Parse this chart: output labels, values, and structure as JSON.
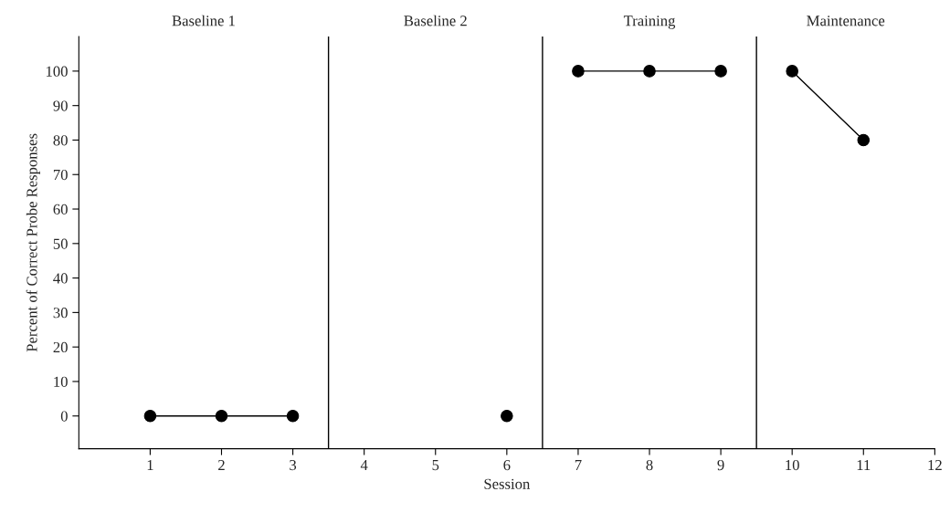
{
  "chart_data": {
    "type": "line",
    "xlabel": "Session",
    "ylabel": "Percent of Correct Probe Responses",
    "xlim": [
      0,
      12
    ],
    "xticks": [
      1,
      2,
      3,
      4,
      5,
      6,
      7,
      8,
      9,
      10,
      11,
      12
    ],
    "ylim": [
      -9.5,
      110
    ],
    "yticks": [
      0,
      10,
      20,
      30,
      40,
      50,
      60,
      70,
      80,
      90,
      100
    ],
    "series": [
      {
        "color": "#000000",
        "x": [
          1,
          2,
          3
        ],
        "values": [
          0,
          0,
          0
        ]
      },
      {
        "color": "#000000",
        "x": [
          6
        ],
        "values": [
          0
        ]
      },
      {
        "color": "#000000",
        "x": [
          7,
          8,
          9
        ],
        "values": [
          100,
          100,
          100
        ]
      },
      {
        "color": "#000000",
        "x": [
          10,
          11
        ],
        "values": [
          100,
          80
        ]
      }
    ],
    "ref_lines": [
      {
        "axis": "x",
        "value": 3.5,
        "color": "#000000"
      },
      {
        "axis": "x",
        "value": 6.5,
        "color": "#000000"
      },
      {
        "axis": "x",
        "value": 9.5,
        "color": "#000000"
      }
    ],
    "annotations": [
      "Baseline 1",
      "Baseline 2",
      "Training",
      "Maintenance"
    ],
    "marker": "circle",
    "line_style": "solid",
    "grid": false,
    "legend": false
  }
}
